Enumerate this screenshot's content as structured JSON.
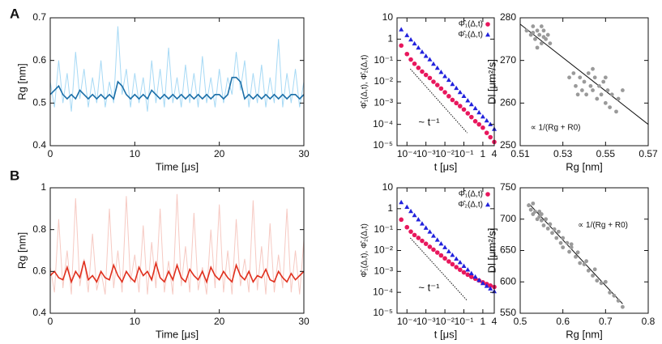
{
  "panel_labels": [
    "A",
    "B"
  ],
  "chart_data": [
    {
      "type": "line",
      "xlabel": "Time [μs]",
      "ylabel": "Rg [nm]",
      "xlim": [
        0,
        30
      ],
      "xticks": [
        0,
        10,
        20,
        30
      ],
      "ylim": [
        0.4,
        0.7
      ],
      "yticks": [
        0.4,
        0.5,
        0.6,
        0.7
      ],
      "x": [
        0,
        0.5,
        1,
        1.5,
        2,
        2.5,
        3,
        3.5,
        4,
        4.5,
        5,
        5.5,
        6,
        6.5,
        7,
        7.5,
        8,
        8.5,
        9,
        9.5,
        10,
        10.5,
        11,
        11.5,
        12,
        12.5,
        13,
        13.5,
        14,
        14.5,
        15,
        15.5,
        16,
        16.5,
        17,
        17.5,
        18,
        18.5,
        19,
        19.5,
        20,
        20.5,
        21,
        21.5,
        22,
        22.5,
        23,
        23.5,
        24,
        24.5,
        25,
        25.5,
        26,
        26.5,
        27,
        27.5,
        28,
        28.5,
        29,
        29.5,
        30
      ],
      "series": [
        {
          "color": "#a6d9f5",
          "values": [
            0.55,
            0.49,
            0.6,
            0.5,
            0.57,
            0.48,
            0.62,
            0.51,
            0.58,
            0.49,
            0.56,
            0.5,
            0.6,
            0.49,
            0.55,
            0.5,
            0.68,
            0.52,
            0.58,
            0.49,
            0.57,
            0.5,
            0.56,
            0.48,
            0.6,
            0.5,
            0.58,
            0.49,
            0.63,
            0.5,
            0.56,
            0.49,
            0.59,
            0.5,
            0.57,
            0.49,
            0.61,
            0.5,
            0.56,
            0.49,
            0.58,
            0.5,
            0.56,
            0.52,
            0.62,
            0.53,
            0.6,
            0.49,
            0.57,
            0.5,
            0.59,
            0.49,
            0.56,
            0.5,
            0.65,
            0.49,
            0.57,
            0.5,
            0.58,
            0.49,
            0.55
          ]
        },
        {
          "color": "#1b6fa8",
          "values": [
            0.52,
            0.53,
            0.54,
            0.52,
            0.51,
            0.52,
            0.51,
            0.53,
            0.52,
            0.51,
            0.52,
            0.51,
            0.52,
            0.51,
            0.52,
            0.51,
            0.55,
            0.54,
            0.52,
            0.51,
            0.52,
            0.51,
            0.52,
            0.51,
            0.53,
            0.52,
            0.51,
            0.52,
            0.51,
            0.52,
            0.51,
            0.52,
            0.51,
            0.52,
            0.51,
            0.52,
            0.51,
            0.52,
            0.51,
            0.52,
            0.52,
            0.51,
            0.52,
            0.56,
            0.56,
            0.55,
            0.51,
            0.52,
            0.51,
            0.52,
            0.51,
            0.52,
            0.51,
            0.52,
            0.51,
            0.52,
            0.51,
            0.52,
            0.52,
            0.51,
            0.52
          ]
        }
      ]
    },
    {
      "type": "scatter",
      "xlabel": "t [μs]",
      "ylabel": "Φ̂₁(Δ,t), Φ̂₂(Δ,t)",
      "xlog": true,
      "ylog": true,
      "legend": "upper right",
      "xlim": [
        3e-05,
        4
      ],
      "xticks": [
        {
          "value": 0.0001,
          "label": "10⁻⁴"
        },
        {
          "value": 0.001,
          "label": "10⁻³"
        },
        {
          "value": 0.01,
          "label": "10⁻²"
        },
        {
          "value": 0.1,
          "label": "10⁻¹"
        },
        1,
        4
      ],
      "ylim": [
        1e-05,
        10
      ],
      "yticks": [
        {
          "value": 1e-05,
          "label": "10⁻⁵"
        },
        {
          "value": 0.0001,
          "label": "10⁻⁴"
        },
        {
          "value": 0.001,
          "label": "10⁻³"
        },
        {
          "value": 0.01,
          "label": "10⁻²"
        },
        {
          "value": 0.1,
          "label": "10⁻¹"
        },
        1,
        10
      ],
      "x": [
        5e-05,
        0.0001,
        0.00016,
        0.00025,
        0.0004,
        0.00063,
        0.001,
        0.0016,
        0.0025,
        0.004,
        0.0063,
        0.01,
        0.016,
        0.025,
        0.04,
        0.063,
        0.1,
        0.16,
        0.25,
        0.4,
        0.63,
        1,
        1.6,
        2.5,
        4
      ],
      "series": [
        {
          "name": "Φ̂₁(Δ,t)",
          "color": "#e8175d",
          "marker": "circle",
          "values": [
            0.5,
            0.2,
            0.11,
            0.07,
            0.045,
            0.03,
            0.021,
            0.015,
            0.01,
            0.007,
            0.0048,
            0.0032,
            0.0021,
            0.0014,
            0.001,
            0.00072,
            0.0005,
            0.00033,
            0.00022,
            0.00014,
            0.0001,
            7e-05,
            4e-05,
            2.5e-05,
            1.5e-05
          ]
        },
        {
          "name": "Φ̂₂(Δ,t)",
          "color": "#2222dd",
          "marker": "triangle",
          "values": [
            2.8,
            1.5,
            0.94,
            0.61,
            0.39,
            0.25,
            0.16,
            0.11,
            0.068,
            0.044,
            0.028,
            0.018,
            0.012,
            0.0077,
            0.005,
            0.0032,
            0.0021,
            0.0013,
            0.00086,
            0.00056,
            0.00036,
            0.00023,
            0.00015,
            0.0001,
            6e-05
          ]
        }
      ],
      "reference": {
        "x": [
          0.00015,
          0.15
        ],
        "values": [
          0.04,
          4e-05
        ]
      },
      "annotation": "~ t⁻¹"
    },
    {
      "type": "scatter",
      "xlabel": "Rg [nm]",
      "ylabel": "Dl [μm²/s]",
      "color": "#9a9a9a",
      "xlim": [
        0.51,
        0.57
      ],
      "xticks": [
        0.51,
        0.53,
        0.55,
        0.57
      ],
      "ylim": [
        250,
        280
      ],
      "yticks": [
        250,
        260,
        270,
        280
      ],
      "x": [
        0.513,
        0.515,
        0.516,
        0.517,
        0.518,
        0.519,
        0.52,
        0.521,
        0.522,
        0.523,
        0.52,
        0.516,
        0.524,
        0.518,
        0.521,
        0.533,
        0.535,
        0.536,
        0.538,
        0.54,
        0.541,
        0.542,
        0.543,
        0.544,
        0.545,
        0.546,
        0.547,
        0.548,
        0.549,
        0.55,
        0.551,
        0.552,
        0.553,
        0.555,
        0.556,
        0.539,
        0.544,
        0.55,
        0.537,
        0.558
      ],
      "values": [
        277,
        276,
        278,
        275,
        277,
        276,
        274,
        277,
        275,
        276,
        278,
        276.5,
        274,
        273,
        275.5,
        266,
        267,
        264,
        266,
        265,
        262,
        267,
        264,
        263,
        266,
        261,
        264,
        262,
        265,
        260,
        263,
        259,
        262,
        258,
        261,
        263,
        268,
        266,
        262,
        263
      ],
      "fit": {
        "x": [
          0.51,
          0.57
        ],
        "values": [
          278.5,
          255
        ]
      },
      "annotation": "∝ 1/(Rg + R0)"
    },
    {
      "type": "line",
      "xlabel": "Time [μs]",
      "ylabel": "Rg [nm]",
      "xlim": [
        0,
        30
      ],
      "xticks": [
        0,
        10,
        20,
        30
      ],
      "ylim": [
        0.4,
        1
      ],
      "yticks": [
        0.4,
        0.6,
        0.8,
        1
      ],
      "x": [
        0,
        0.5,
        1,
        1.5,
        2,
        2.5,
        3,
        3.5,
        4,
        4.5,
        5,
        5.5,
        6,
        6.5,
        7,
        7.5,
        8,
        8.5,
        9,
        9.5,
        10,
        10.5,
        11,
        11.5,
        12,
        12.5,
        13,
        13.5,
        14,
        14.5,
        15,
        15.5,
        16,
        16.5,
        17,
        17.5,
        18,
        18.5,
        19,
        19.5,
        20,
        20.5,
        21,
        21.5,
        22,
        22.5,
        23,
        23.5,
        24,
        24.5,
        25,
        25.5,
        26,
        26.5,
        27,
        27.5,
        28,
        28.5,
        29,
        29.5,
        30
      ],
      "series": [
        {
          "color": "#f6c9c2",
          "values": [
            0.62,
            0.5,
            0.85,
            0.52,
            0.7,
            0.49,
            0.95,
            0.53,
            0.66,
            0.5,
            0.78,
            0.51,
            0.6,
            0.49,
            0.9,
            0.52,
            0.7,
            0.5,
            0.96,
            0.55,
            0.68,
            0.5,
            0.82,
            0.49,
            0.74,
            0.52,
            0.9,
            0.5,
            0.65,
            0.49,
            0.97,
            0.53,
            0.72,
            0.5,
            0.88,
            0.51,
            0.62,
            0.49,
            0.8,
            0.52,
            0.92,
            0.5,
            0.7,
            0.49,
            0.85,
            0.53,
            0.66,
            0.5,
            0.94,
            0.51,
            0.72,
            0.49,
            0.83,
            0.5,
            0.68,
            0.52,
            0.9,
            0.5,
            0.7,
            0.49,
            0.75
          ]
        },
        {
          "color": "#e0301e",
          "values": [
            0.58,
            0.6,
            0.57,
            0.56,
            0.62,
            0.55,
            0.6,
            0.57,
            0.65,
            0.56,
            0.58,
            0.55,
            0.6,
            0.57,
            0.56,
            0.63,
            0.58,
            0.55,
            0.6,
            0.57,
            0.55,
            0.62,
            0.58,
            0.6,
            0.56,
            0.64,
            0.57,
            0.55,
            0.6,
            0.56,
            0.63,
            0.57,
            0.55,
            0.61,
            0.58,
            0.56,
            0.6,
            0.55,
            0.62,
            0.58,
            0.56,
            0.6,
            0.57,
            0.55,
            0.63,
            0.58,
            0.56,
            0.6,
            0.55,
            0.58,
            0.57,
            0.61,
            0.56,
            0.55,
            0.6,
            0.57,
            0.55,
            0.59,
            0.56,
            0.58,
            0.6
          ]
        }
      ]
    },
    {
      "type": "scatter",
      "xlabel": "t [μs]",
      "ylabel": "Φ̂₁(Δ,t), Φ̂₂(Δ,t)",
      "xlog": true,
      "ylog": true,
      "legend": "upper right",
      "xlim": [
        3e-05,
        4
      ],
      "xticks": [
        {
          "value": 0.0001,
          "label": "10⁻⁴"
        },
        {
          "value": 0.001,
          "label": "10⁻³"
        },
        {
          "value": 0.01,
          "label": "10⁻²"
        },
        {
          "value": 0.1,
          "label": "10⁻¹"
        },
        1,
        4
      ],
      "ylim": [
        1e-05,
        10
      ],
      "yticks": [
        {
          "value": 1e-05,
          "label": "10⁻⁵"
        },
        {
          "value": 0.0001,
          "label": "10⁻⁴"
        },
        {
          "value": 0.001,
          "label": "10⁻³"
        },
        {
          "value": 0.01,
          "label": "10⁻²"
        },
        {
          "value": 0.1,
          "label": "10⁻¹"
        },
        1,
        10
      ],
      "x": [
        5e-05,
        0.0001,
        0.00016,
        0.00025,
        0.0004,
        0.00063,
        0.001,
        0.0016,
        0.0025,
        0.004,
        0.0063,
        0.01,
        0.016,
        0.025,
        0.04,
        0.063,
        0.1,
        0.16,
        0.25,
        0.4,
        0.63,
        1,
        1.6,
        2.5,
        4
      ],
      "series": [
        {
          "name": "Φ̂₁(Δ,t)",
          "color": "#e8175d",
          "marker": "circle",
          "values": [
            0.3,
            0.13,
            0.08,
            0.055,
            0.04,
            0.029,
            0.021,
            0.015,
            0.011,
            0.008,
            0.0058,
            0.0042,
            0.003,
            0.0022,
            0.0016,
            0.0012,
            0.0009,
            0.0007,
            0.00055,
            0.00045,
            0.00037,
            0.0003,
            0.00025,
            0.00021,
            0.00018
          ]
        },
        {
          "name": "Φ̂₂(Δ,t)",
          "color": "#2222dd",
          "marker": "triangle",
          "values": [
            2,
            1.2,
            0.75,
            0.48,
            0.3,
            0.19,
            0.12,
            0.078,
            0.05,
            0.032,
            0.021,
            0.014,
            0.009,
            0.006,
            0.004,
            0.0027,
            0.0018,
            0.0012,
            0.0008,
            0.00055,
            0.00038,
            0.00027,
            0.0002,
            0.00015,
            0.00011
          ]
        }
      ],
      "reference": {
        "x": [
          0.00015,
          0.15
        ],
        "values": [
          0.04,
          4e-05
        ]
      },
      "annotation": "~ t⁻¹"
    },
    {
      "type": "scatter",
      "xlabel": "Rg [nm]",
      "ylabel": "Dl [μm²/s]",
      "color": "#9a9a9a",
      "xlim": [
        0.5,
        0.8
      ],
      "xticks": [
        0.5,
        0.6,
        0.7,
        0.8
      ],
      "ylim": [
        550,
        750
      ],
      "yticks": [
        550,
        600,
        650,
        700,
        750
      ],
      "x": [
        0.52,
        0.525,
        0.53,
        0.53,
        0.535,
        0.54,
        0.545,
        0.55,
        0.55,
        0.555,
        0.56,
        0.565,
        0.57,
        0.575,
        0.58,
        0.585,
        0.59,
        0.595,
        0.6,
        0.6,
        0.61,
        0.615,
        0.62,
        0.63,
        0.635,
        0.64,
        0.65,
        0.655,
        0.66,
        0.67,
        0.675,
        0.68,
        0.69,
        0.7,
        0.71,
        0.72,
        0.73,
        0.74,
        0.545,
        0.62
      ],
      "values": [
        722,
        715,
        725,
        708,
        712,
        700,
        712,
        698,
        708,
        690,
        700,
        685,
        692,
        678,
        684,
        670,
        680,
        662,
        670,
        655,
        662,
        648,
        655,
        640,
        647,
        630,
        628,
        633,
        618,
        610,
        620,
        602,
        598,
        600,
        583,
        578,
        570,
        560,
        704,
        660
      ],
      "fit": {
        "x": [
          0.52,
          0.74
        ],
        "values": [
          725,
          565
        ]
      },
      "annotation": "∝ 1/(Rg + R0)"
    }
  ]
}
